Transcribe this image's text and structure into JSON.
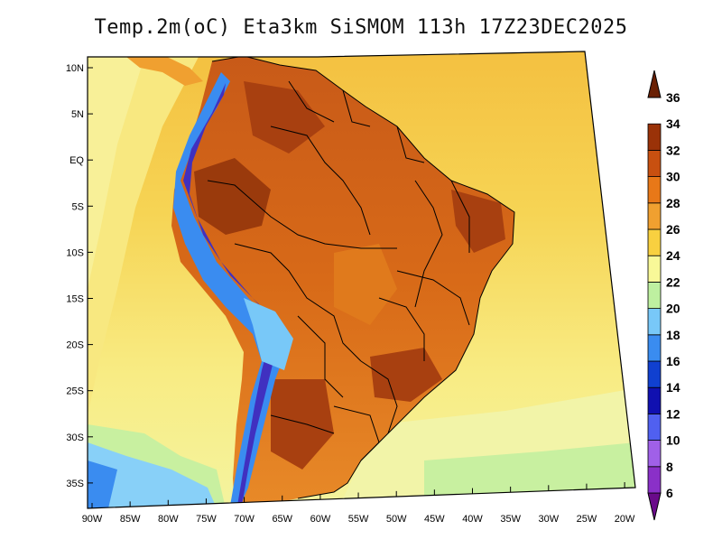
{
  "title": "Temp.2m(oC) Eta3km SiSMOM 113h 17Z23DEC2025",
  "lat_labels": [
    "10N",
    "5N",
    "EQ",
    "5S",
    "10S",
    "15S",
    "20S",
    "25S",
    "30S",
    "35S"
  ],
  "lon_labels": [
    "90W",
    "85W",
    "80W",
    "75W",
    "70W",
    "65W",
    "60W",
    "55W",
    "50W",
    "45W",
    "40W",
    "35W",
    "30W",
    "25W",
    "20W"
  ],
  "colorbar": {
    "labels": [
      "6",
      "8",
      "10",
      "12",
      "14",
      "16",
      "18",
      "20",
      "22",
      "24",
      "26",
      "28",
      "30",
      "32",
      "34",
      "36"
    ],
    "colors": [
      "#6a0a8a",
      "#8a30c8",
      "#a060e8",
      "#5060f0",
      "#1010b0",
      "#1040d0",
      "#3a8cf0",
      "#78c8f8",
      "#bef0a0",
      "#f8f898",
      "#f8d040",
      "#f0a030",
      "#e87818",
      "#c85010",
      "#9a3208",
      "#6a2004"
    ]
  },
  "legend_colors": {
    "ocean_north": "#f4d048",
    "ocean_mid": "#f8e878",
    "ocean_south": "#f8f090",
    "ocean_far_south": "#78c8f8",
    "land_hot": "#c85010",
    "land_warm": "#e87818",
    "andes_cold": "#3a8cf0"
  }
}
